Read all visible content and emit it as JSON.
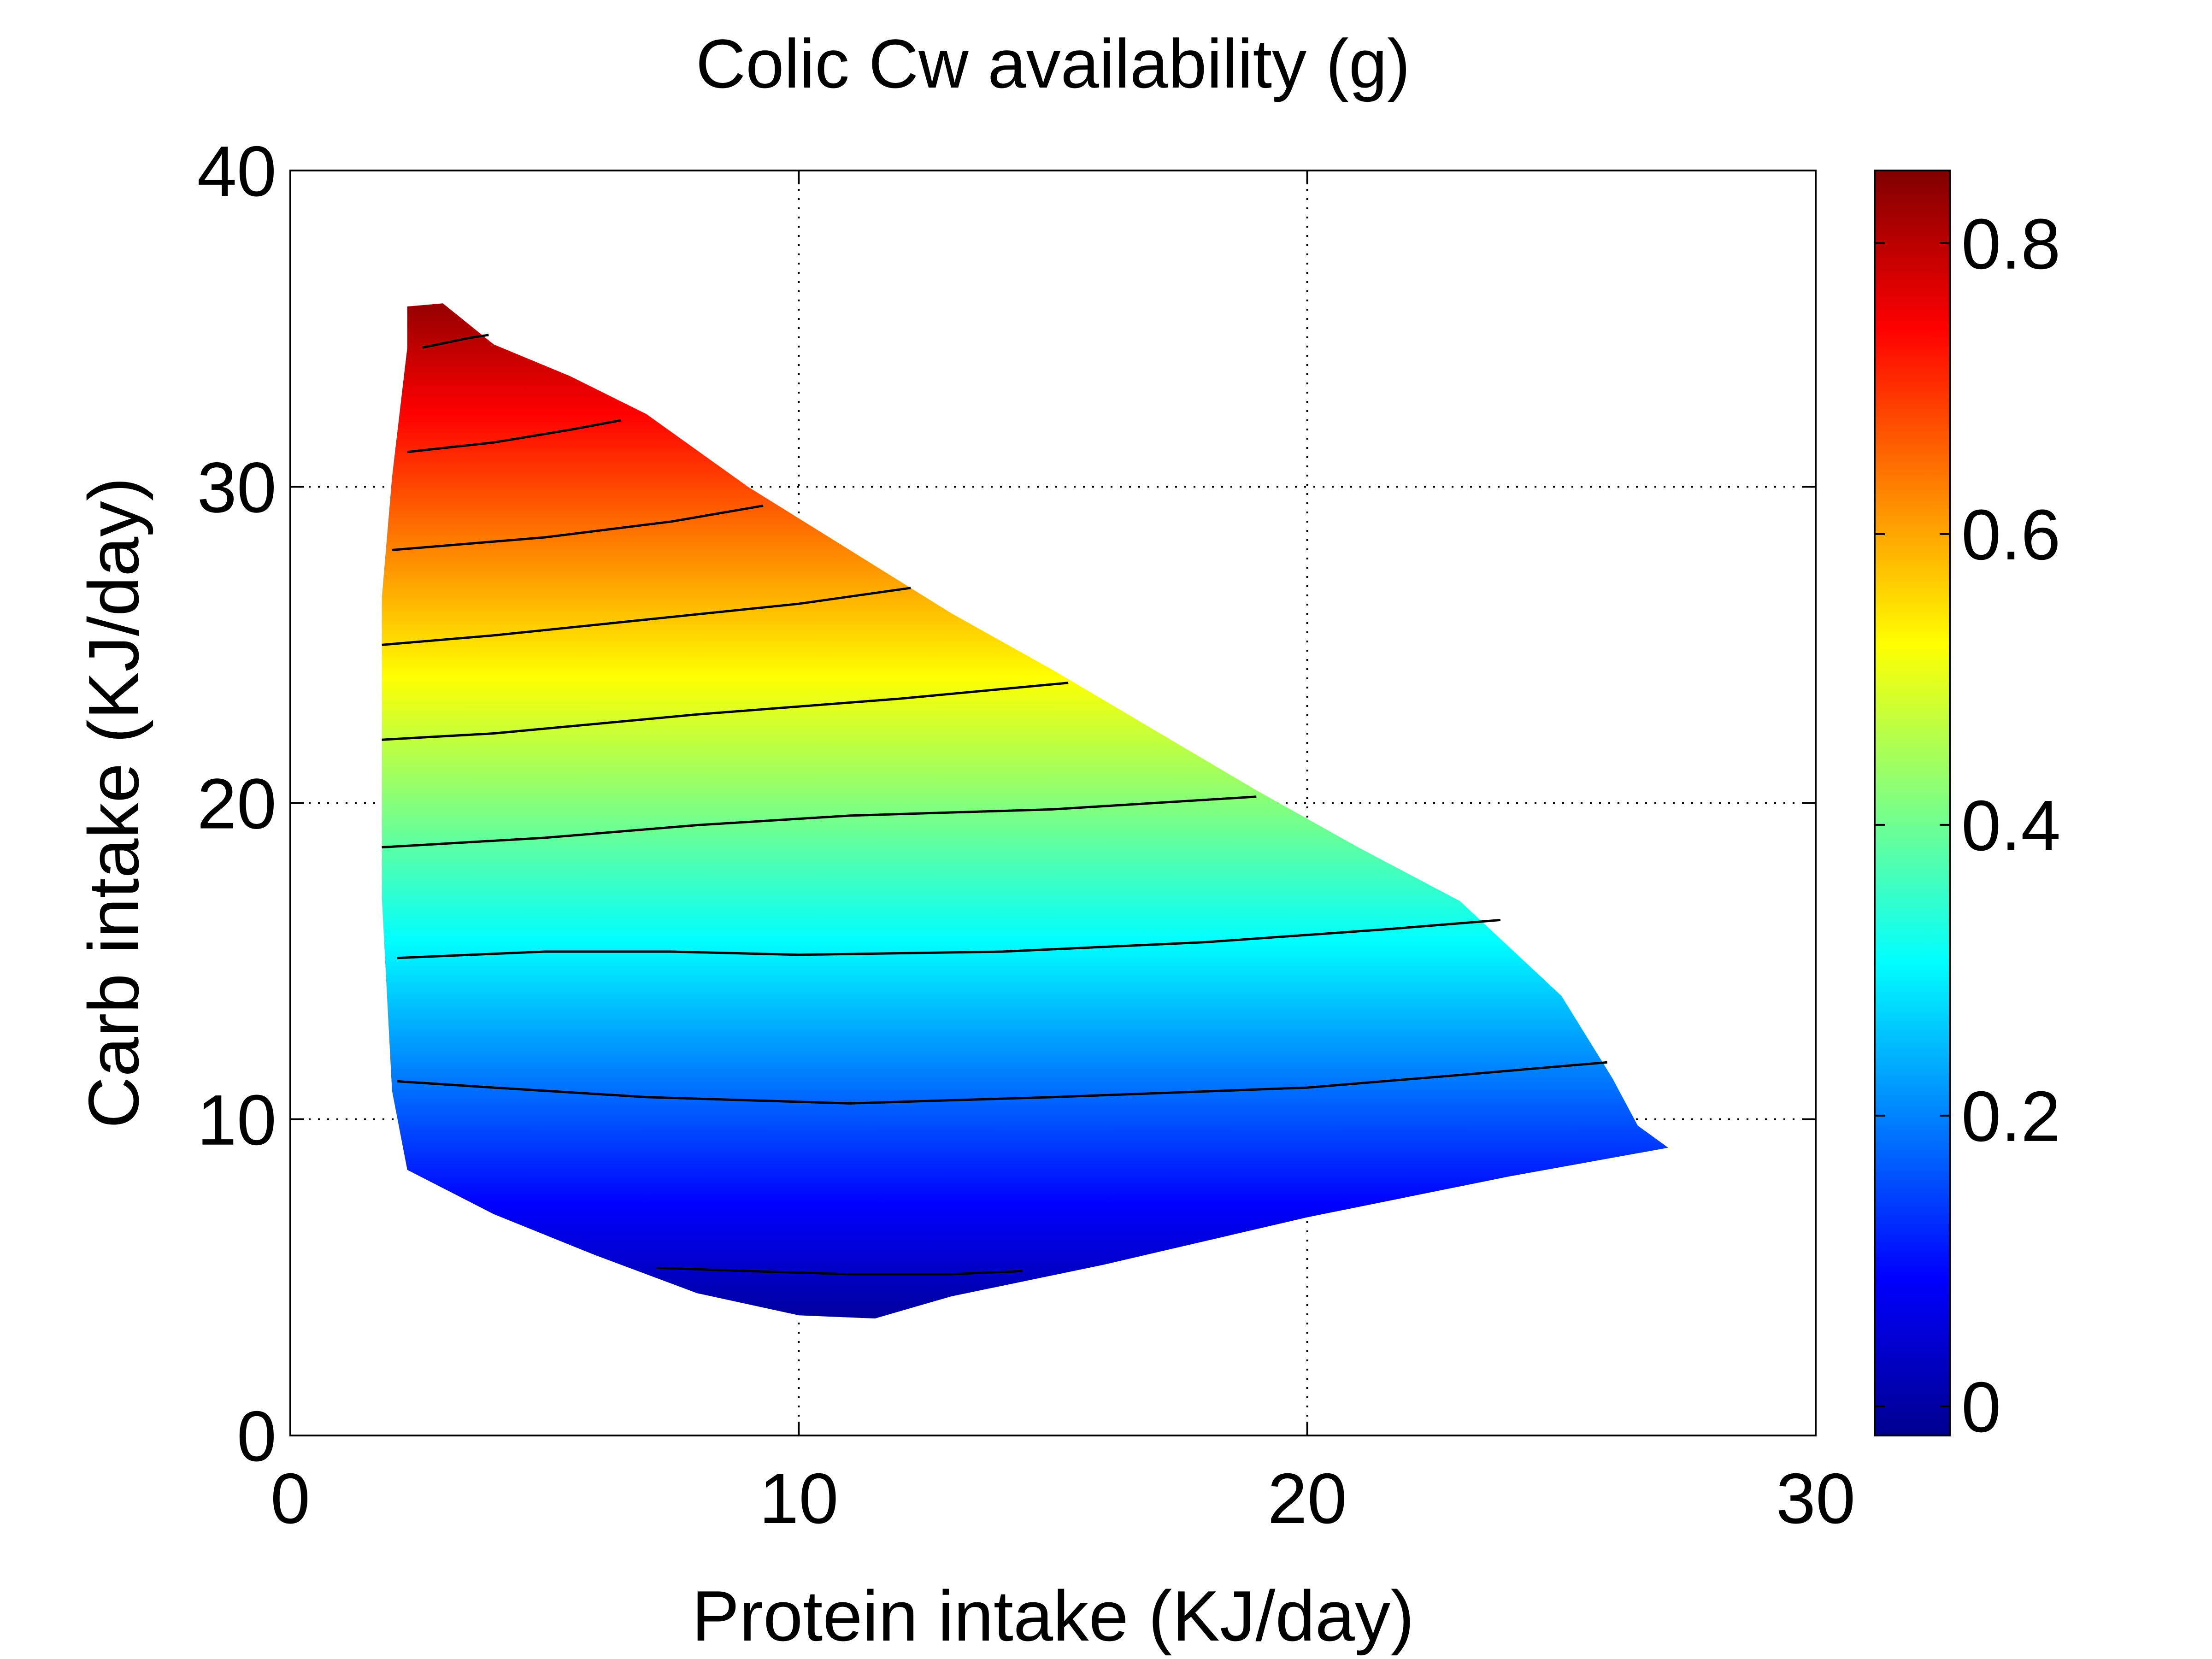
{
  "chart_data": {
    "type": "heatmap",
    "subtype": "filled surface over a triangular region with contour lines",
    "title": "Colic Cw availability (g)",
    "xlabel": "Protein intake (KJ/day)",
    "ylabel": "Carb intake (KJ/day)",
    "xlim": [
      0,
      30
    ],
    "ylim": [
      0,
      40
    ],
    "xticks": [
      "0",
      "10",
      "20",
      "30"
    ],
    "yticks": [
      "0",
      "10",
      "20",
      "30",
      "40"
    ],
    "grid": true,
    "colormap": "jet",
    "colorbar": {
      "position": "right",
      "range": [
        -0.02,
        0.85
      ],
      "ticks": [
        "0",
        "0.2",
        "0.4",
        "0.6",
        "0.8"
      ],
      "colors": [
        "#00008f",
        "#0000ff",
        "#0080ff",
        "#00ffff",
        "#80ff80",
        "#ffff00",
        "#ff8000",
        "#ff0000",
        "#800000"
      ]
    },
    "region_boundary": [
      [
        2.3,
        35.7
      ],
      [
        3.0,
        35.8
      ],
      [
        4.0,
        34.5
      ],
      [
        5.5,
        33.5
      ],
      [
        7.0,
        32.3
      ],
      [
        9.0,
        30.0
      ],
      [
        11.0,
        28.0
      ],
      [
        13.0,
        26.0
      ],
      [
        15.0,
        24.2
      ],
      [
        17.0,
        22.3
      ],
      [
        19.0,
        20.4
      ],
      [
        21.0,
        18.6
      ],
      [
        23.0,
        16.9
      ],
      [
        25.0,
        13.9
      ],
      [
        26.0,
        11.3
      ],
      [
        26.5,
        9.8
      ],
      [
        27.1,
        9.1
      ],
      [
        24.0,
        8.2
      ],
      [
        20.0,
        6.9
      ],
      [
        16.0,
        5.4
      ],
      [
        13.0,
        4.4
      ],
      [
        11.5,
        3.7
      ],
      [
        10.0,
        3.8
      ],
      [
        8.0,
        4.5
      ],
      [
        6.0,
        5.7
      ],
      [
        4.0,
        7.0
      ],
      [
        2.3,
        8.4
      ],
      [
        2.0,
        10.9
      ],
      [
        1.8,
        17.0
      ],
      [
        1.8,
        26.5
      ],
      [
        2.0,
        30.3
      ],
      [
        2.3,
        34.4
      ]
    ],
    "value_model": "value ≈ 0.0261 * carb - 0.1022 (contour spacing 0.1 g)",
    "contour_lines": [
      {
        "level": 0.8,
        "points": [
          [
            2.6,
            34.4
          ],
          [
            3.5,
            34.7
          ],
          [
            3.9,
            34.8
          ]
        ]
      },
      {
        "level": 0.7,
        "points": [
          [
            2.3,
            31.1
          ],
          [
            4.0,
            31.4
          ],
          [
            5.5,
            31.8
          ],
          [
            6.5,
            32.1
          ]
        ]
      },
      {
        "level": 0.6,
        "points": [
          [
            2.0,
            28.0
          ],
          [
            5.0,
            28.4
          ],
          [
            7.5,
            28.9
          ],
          [
            9.3,
            29.4
          ]
        ]
      },
      {
        "level": 0.5,
        "points": [
          [
            1.8,
            25.0
          ],
          [
            4.0,
            25.3
          ],
          [
            7.0,
            25.8
          ],
          [
            10.0,
            26.3
          ],
          [
            12.2,
            26.8
          ]
        ]
      },
      {
        "level": 0.4,
        "points": [
          [
            1.8,
            22.0
          ],
          [
            4.0,
            22.2
          ],
          [
            8.0,
            22.8
          ],
          [
            12.0,
            23.3
          ],
          [
            15.3,
            23.8
          ]
        ]
      },
      {
        "level": 0.3,
        "points": [
          [
            1.8,
            18.6
          ],
          [
            5.0,
            18.9
          ],
          [
            8.0,
            19.3
          ],
          [
            11.0,
            19.6
          ],
          [
            15.0,
            19.8
          ],
          [
            19.0,
            20.2
          ]
        ]
      },
      {
        "level": 0.2,
        "points": [
          [
            2.1,
            15.1
          ],
          [
            5.0,
            15.3
          ],
          [
            7.5,
            15.3
          ],
          [
            10.0,
            15.2
          ],
          [
            14.0,
            15.3
          ],
          [
            18.0,
            15.6
          ],
          [
            21.5,
            16.0
          ],
          [
            23.8,
            16.3
          ]
        ]
      },
      {
        "level": 0.1,
        "points": [
          [
            2.1,
            11.2
          ],
          [
            4.0,
            11.0
          ],
          [
            7.0,
            10.7
          ],
          [
            11.0,
            10.5
          ],
          [
            15.0,
            10.7
          ],
          [
            20.0,
            11.0
          ],
          [
            23.0,
            11.4
          ],
          [
            25.9,
            11.8
          ]
        ]
      },
      {
        "level": 0.0,
        "points": [
          [
            7.2,
            5.3
          ],
          [
            9.0,
            5.2
          ],
          [
            11.0,
            5.1
          ],
          [
            13.0,
            5.1
          ],
          [
            14.4,
            5.2
          ]
        ]
      }
    ]
  }
}
